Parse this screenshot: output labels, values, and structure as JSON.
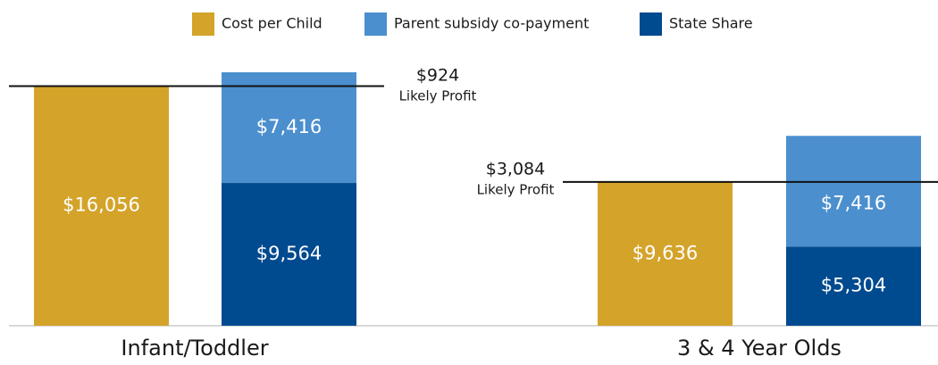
{
  "chart_data": {
    "type": "bar",
    "categories": [
      "Infant/Toddler",
      "3 & 4 Year Olds"
    ],
    "series": [
      {
        "name": "Cost per Child",
        "color": "#d4a32a",
        "values": [
          16056,
          9636
        ],
        "value_labels": [
          "$16,056",
          "$9,636"
        ]
      },
      {
        "name": "Parent subsidy co-payment",
        "color": "#4b8fce",
        "values": [
          7416,
          7416
        ],
        "value_labels": [
          "$7,416",
          "$7,416"
        ]
      },
      {
        "name": "State Share",
        "color": "#004a8f",
        "values": [
          9564,
          5304
        ],
        "value_labels": [
          "$9,564",
          "$5,304"
        ]
      }
    ],
    "annotations": [
      {
        "value": 924,
        "label": "$924",
        "text": "Likely Profit"
      },
      {
        "value": 3084,
        "label": "$3,084",
        "text": "Likely Profit"
      }
    ]
  }
}
